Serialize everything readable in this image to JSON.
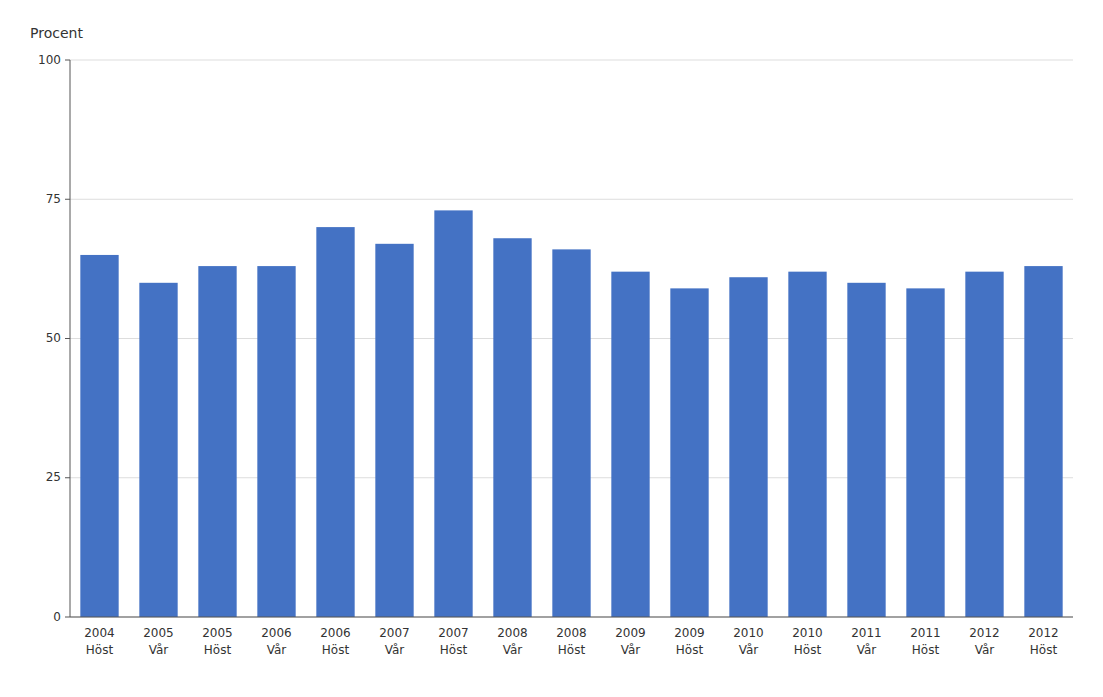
{
  "chart_data": {
    "type": "bar",
    "ylabel": "Procent",
    "categories": [
      "2004\nHöst",
      "2005\nVår",
      "2005\nHöst",
      "2006\nVår",
      "2006\nHöst",
      "2007\nVår",
      "2007\nHöst",
      "2008\nVår",
      "2008\nHöst",
      "2009\nVår",
      "2009\nHöst",
      "2010\nVår",
      "2010\nHöst",
      "2011\nVår",
      "2011\nHöst",
      "2012\nVår",
      "2012\nHöst"
    ],
    "values": [
      65,
      60,
      63,
      63,
      70,
      67,
      73,
      68,
      66,
      62,
      59,
      61,
      62,
      60,
      59,
      62,
      63
    ],
    "color": "#4472c4",
    "ylim": [
      0,
      100
    ],
    "yticks": [
      0,
      25,
      50,
      75,
      100
    ],
    "grid": true
  }
}
